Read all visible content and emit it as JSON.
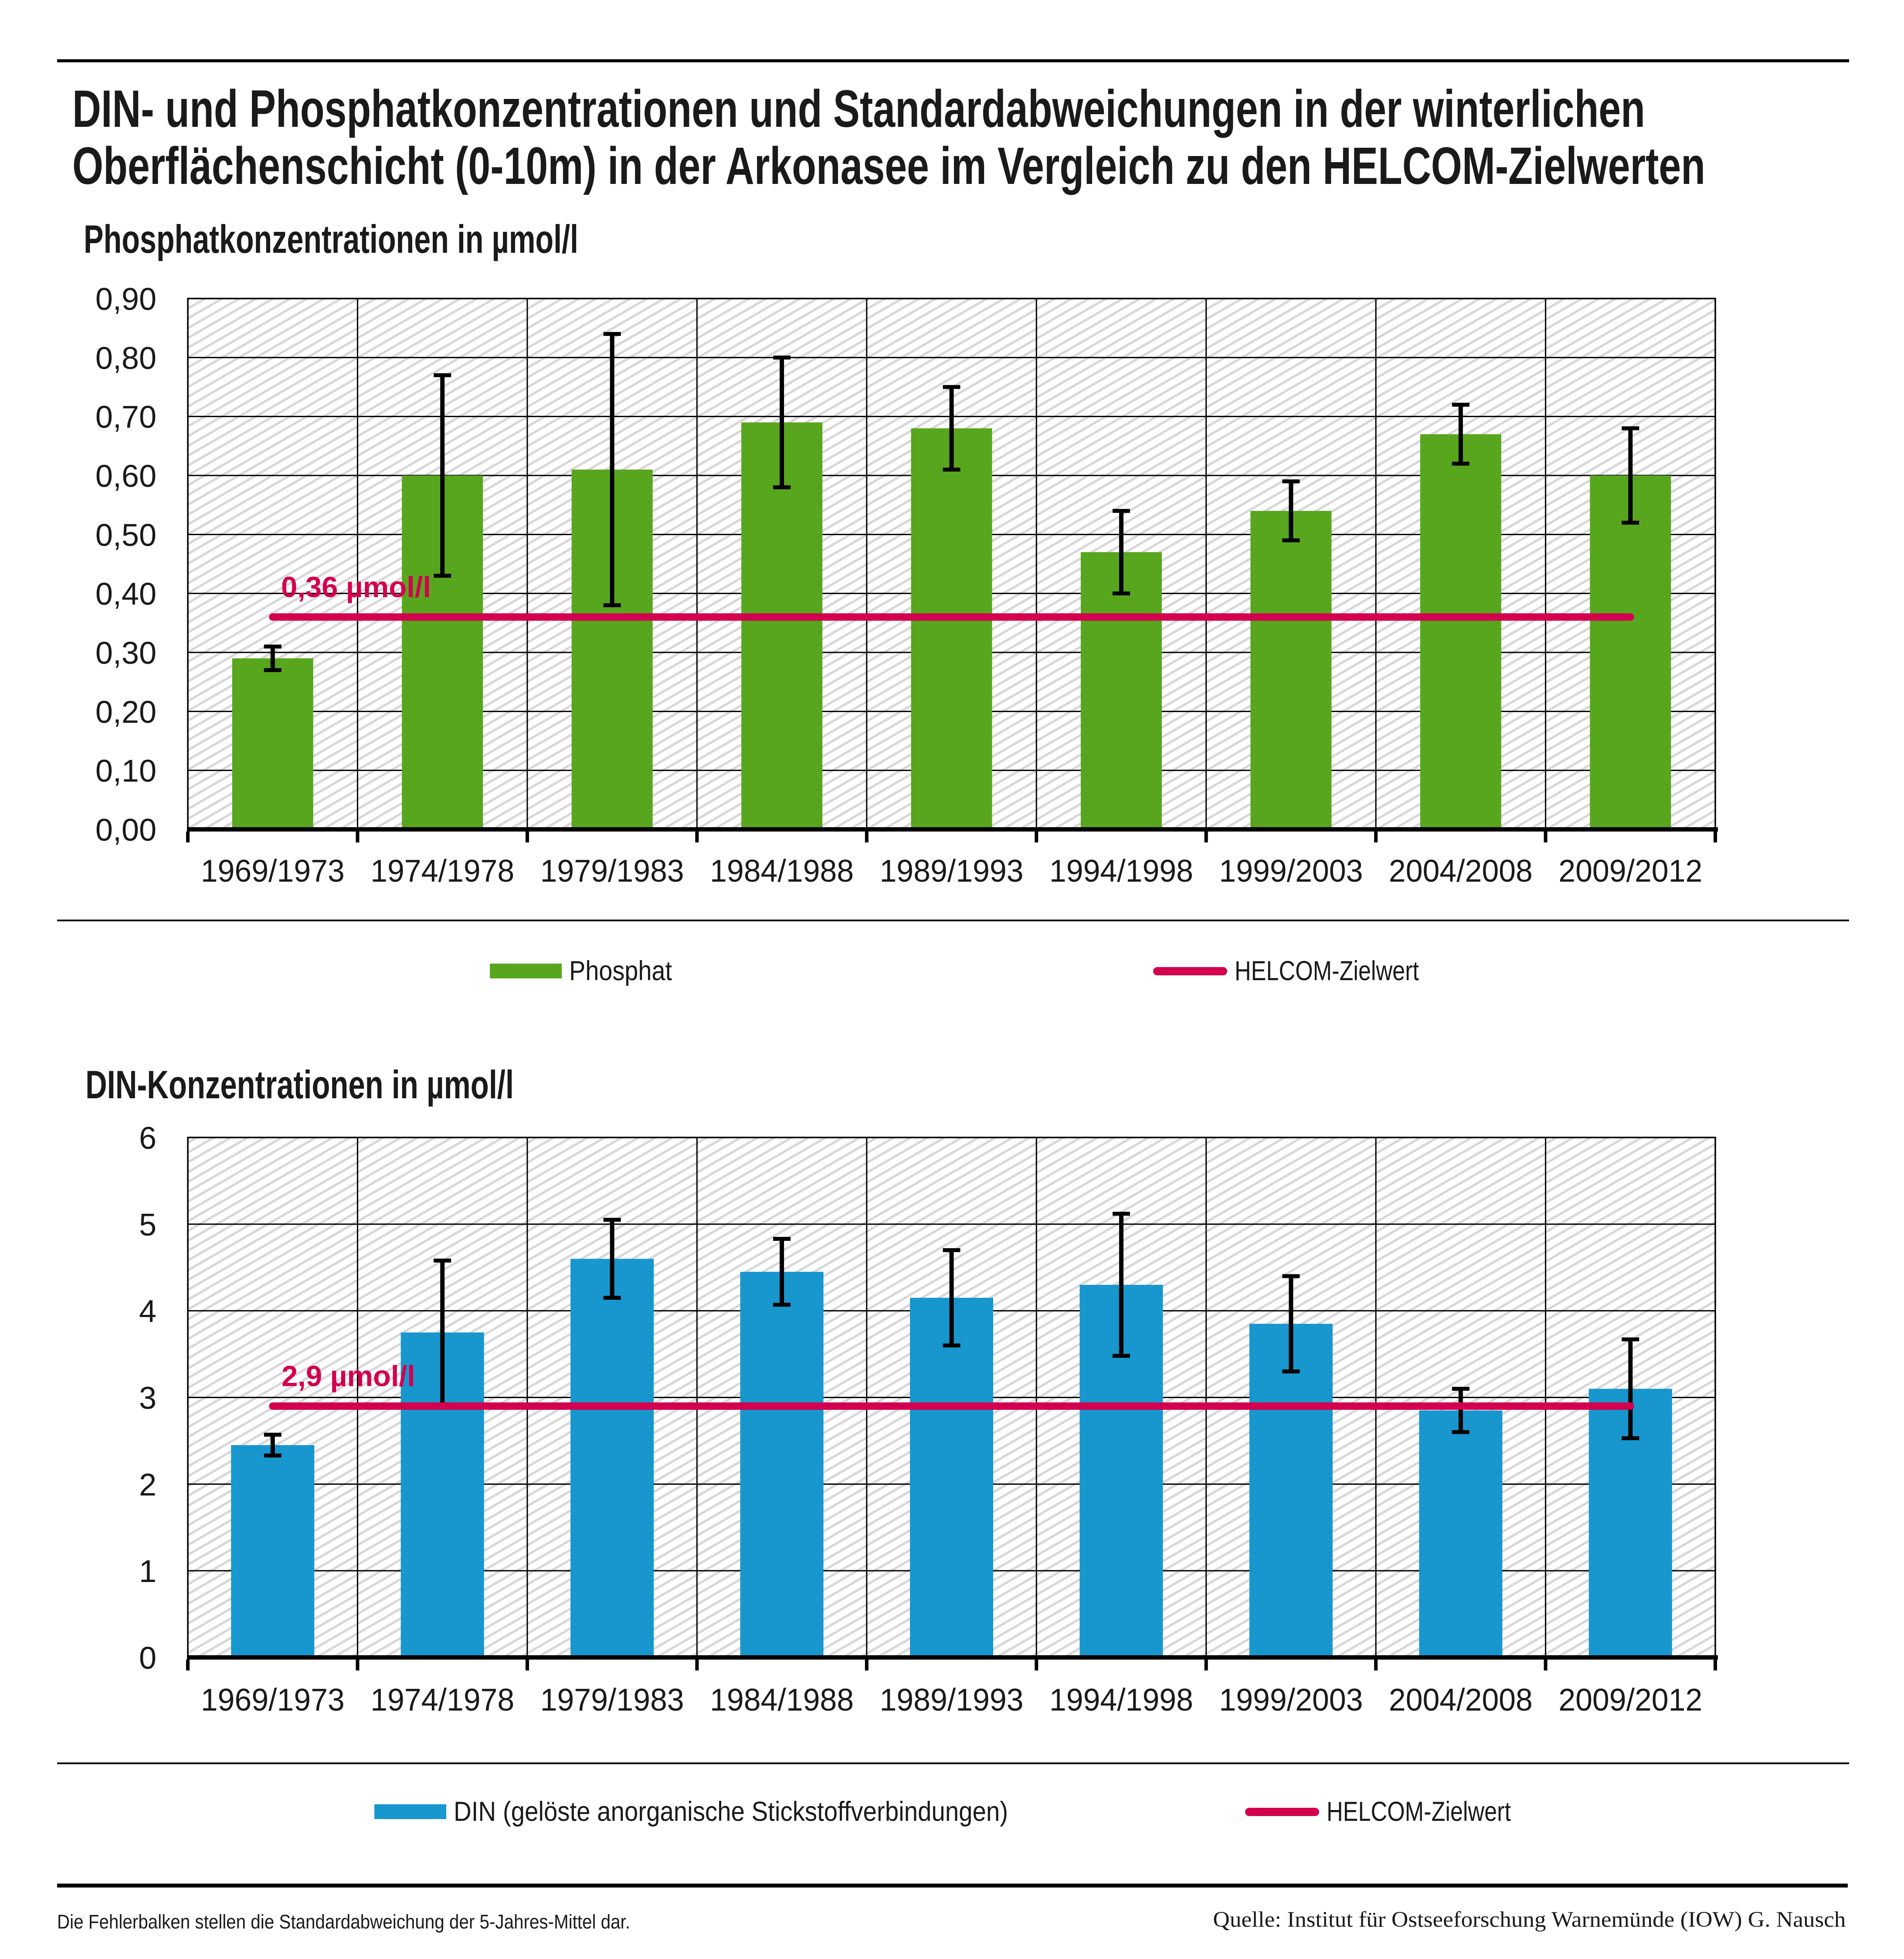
{
  "header": {
    "title_line1": "DIN- und Phosphatkonzentrationen und Standardabweichungen in der winterlichen",
    "title_line2": "Oberflächenschicht (0-10m) in der Arkonasee im Vergleich zu den HELCOM-Zielwerten"
  },
  "footer": {
    "note": "Die Fehlerbalken stellen die Standardabweichung der 5-Jahres-Mittel dar.",
    "source": "Quelle: Institut für Ostseeforschung Warnemünde (IOW) G. Nausch"
  },
  "colors": {
    "phosphat_green": "#58a61e",
    "din_blue": "#1896ce",
    "helcom_pink": "#d2004f",
    "hatch_gray": "#d8d8d8",
    "grid_black": "#000000",
    "text": "#1a1a19"
  },
  "chart_data": [
    {
      "type": "bar",
      "title": "Phosphatkonzentrationen in µmol/l",
      "categories": [
        "1969/1973",
        "1974/1978",
        "1979/1983",
        "1984/1988",
        "1989/1993",
        "1994/1998",
        "1999/2003",
        "2004/2008",
        "2009/2012"
      ],
      "series": [
        {
          "name": "Phosphat",
          "values": [
            0.29,
            0.6,
            0.61,
            0.69,
            0.68,
            0.47,
            0.54,
            0.67,
            0.6
          ],
          "stddev": [
            0.02,
            0.17,
            0.23,
            0.11,
            0.07,
            0.07,
            0.05,
            0.05,
            0.08
          ]
        }
      ],
      "target_line": {
        "name": "HELCOM-Zielwert",
        "value": 0.36,
        "label": "0,36 µmol/l"
      },
      "ylim": [
        0,
        0.9
      ],
      "ytick": 0.1,
      "tick_decimals": 2,
      "grid": true,
      "legend_position": "bottom",
      "legend": [
        {
          "swatch": "bar",
          "label": "Phosphat"
        },
        {
          "swatch": "line",
          "label": "HELCOM-Zielwert"
        }
      ],
      "xlabel": "",
      "ylabel": "µmol/l"
    },
    {
      "type": "bar",
      "title": "DIN-Konzentrationen in µmol/l",
      "categories": [
        "1969/1973",
        "1974/1978",
        "1979/1983",
        "1984/1988",
        "1989/1993",
        "1994/1998",
        "1999/2003",
        "2004/2008",
        "2009/2012"
      ],
      "series": [
        {
          "name": "DIN (gelöste anorganische Stickstoffverbindungen)",
          "values": [
            2.45,
            3.75,
            4.6,
            4.45,
            4.15,
            4.3,
            3.85,
            2.85,
            3.1
          ],
          "stddev": [
            0.12,
            0.83,
            0.45,
            0.38,
            0.55,
            0.82,
            0.55,
            0.25,
            0.57
          ]
        }
      ],
      "target_line": {
        "name": "HELCOM-Zielwert",
        "value": 2.9,
        "label": "2,9 µmol/l"
      },
      "ylim": [
        0,
        6
      ],
      "ytick": 1,
      "tick_decimals": 0,
      "grid": true,
      "legend_position": "bottom",
      "legend": [
        {
          "swatch": "bar",
          "label": "DIN (gelöste anorganische Stickstoffverbindungen)"
        },
        {
          "swatch": "line",
          "label": "HELCOM-Zielwert"
        }
      ],
      "xlabel": "",
      "ylabel": "µmol/l"
    }
  ]
}
